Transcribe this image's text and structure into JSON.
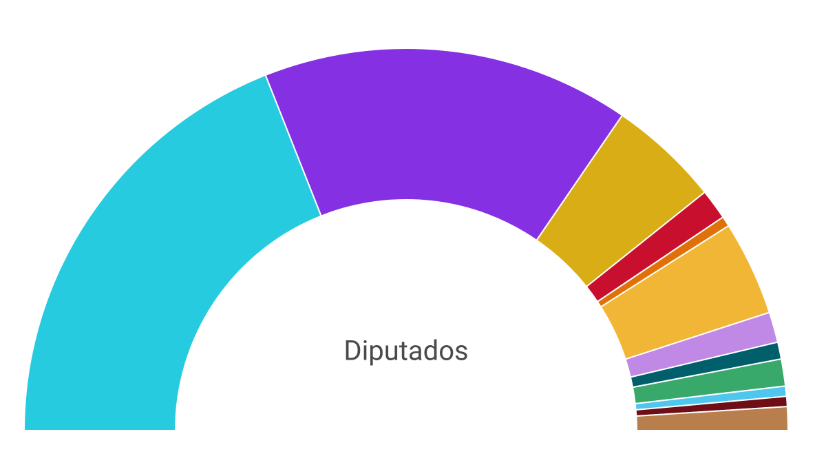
{
  "chart_data": {
    "type": "half-donut",
    "title": "Diputados",
    "values": [
      133,
      109,
      33,
      9,
      3,
      28,
      9,
      5,
      8,
      3,
      3,
      7
    ],
    "colors": [
      "#26cbe0",
      "#8530e2",
      "#d9ad16",
      "#c8102e",
      "#e07108",
      "#f2b636",
      "#c089e5",
      "#005f6b",
      "#39a86b",
      "#4fc6ee",
      "#6e0e17",
      "#b87f4c"
    ]
  }
}
